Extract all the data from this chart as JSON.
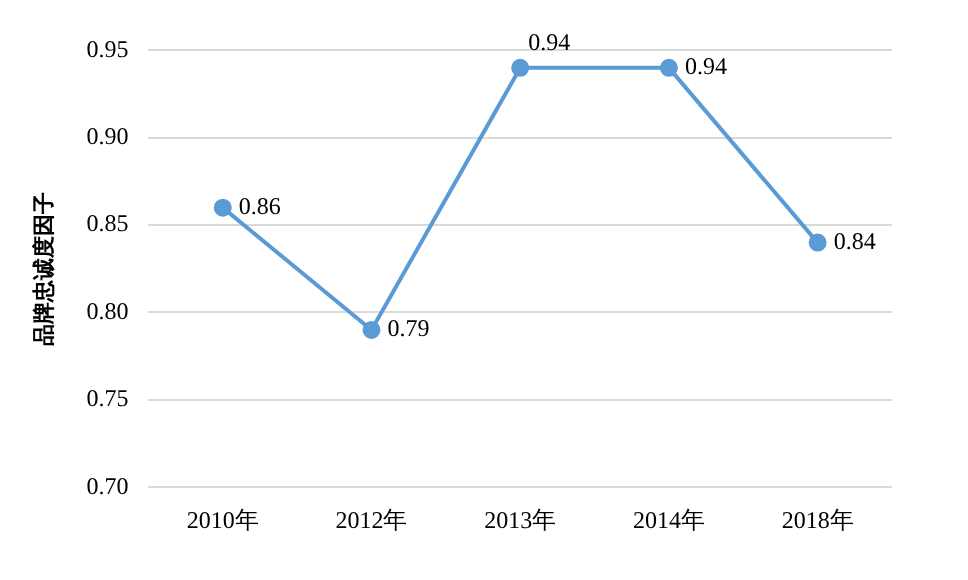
{
  "chart_data": {
    "type": "line",
    "ylabel": "品牌忠诚度因子",
    "categories": [
      "2010年",
      "2012年",
      "2013年",
      "2014年",
      "2018年"
    ],
    "series": [
      {
        "color": "#5b9bd5",
        "values": [
          0.86,
          0.79,
          0.94,
          0.94,
          0.84
        ]
      }
    ],
    "ylim": [
      0.7,
      0.95
    ],
    "yticks": [
      {
        "value": 0.7,
        "label": "0.70"
      },
      {
        "value": 0.75,
        "label": "0.75"
      },
      {
        "value": 0.8,
        "label": "0.80"
      },
      {
        "value": 0.85,
        "label": "0.85"
      },
      {
        "value": 0.9,
        "label": "0.90"
      },
      {
        "value": 0.95,
        "label": "0.95"
      }
    ],
    "grid": "y",
    "legend": false,
    "marker": "circle",
    "line_style": "solid",
    "data_labels": true
  }
}
